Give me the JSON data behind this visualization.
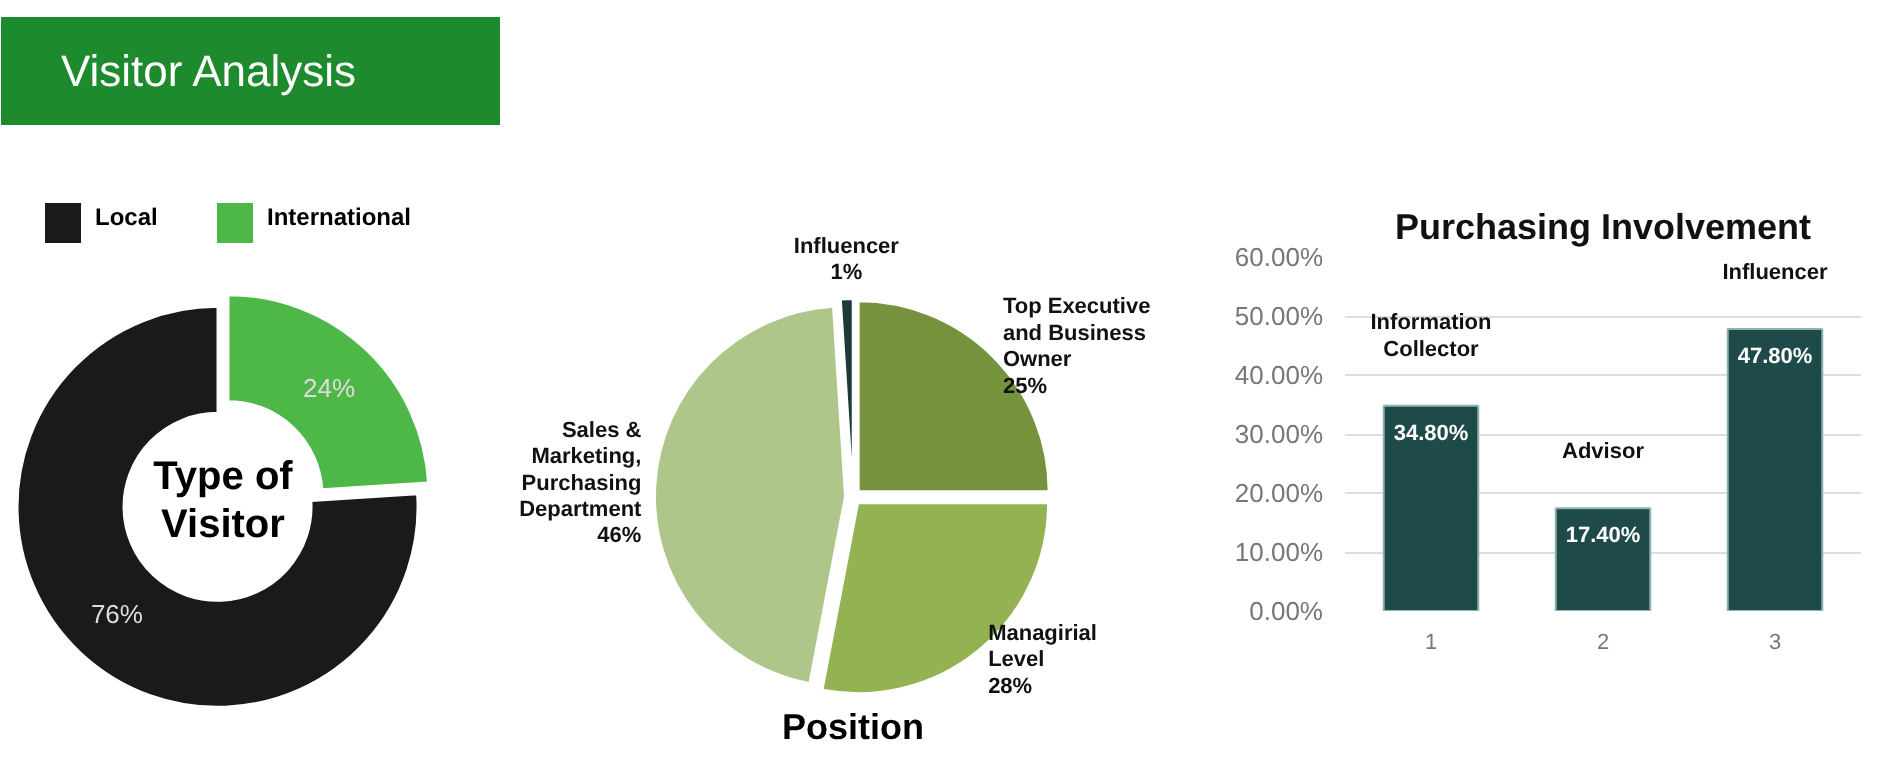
{
  "chart_data": [
    {
      "type": "donut",
      "title": "Type of Visitor",
      "annotations": [
        "Visitor Analysis"
      ],
      "categories": [
        "Local",
        "International"
      ],
      "values": [
        76,
        24
      ],
      "colors": [
        "#1a1a1a",
        "#4db848"
      ],
      "value_labels": [
        "76%",
        "24%"
      ],
      "legend": "top"
    },
    {
      "type": "pie",
      "title": "Position",
      "categories": [
        "Influencer",
        "Sales & Marketing, Purchasing Department",
        "Managirial Level",
        "Top Executive and Business Owner"
      ],
      "values": [
        1,
        46,
        28,
        25
      ],
      "colors": [
        "#1c3a36",
        "#afc68a",
        "#93b251",
        "#76923c"
      ],
      "value_labels": [
        "1%",
        "46%",
        "28%",
        "25%"
      ]
    },
    {
      "type": "bar",
      "title": "Purchasing Involvement",
      "categories": [
        "1",
        "2",
        "3"
      ],
      "values": [
        34.8,
        17.4,
        47.8
      ],
      "color": "#1e4a4a",
      "value_labels": [
        "34.80%",
        "17.40%",
        "47.80%"
      ],
      "ylim": [
        0,
        60
      ],
      "yticks": [
        {
          "value": 0,
          "label": "0.00%"
        },
        {
          "value": 10,
          "label": "10.00%"
        },
        {
          "value": 20,
          "label": "20.00%"
        },
        {
          "value": 30,
          "label": "30.00%"
        },
        {
          "value": 40,
          "label": "40.00%"
        },
        {
          "value": 50,
          "label": "50.00%"
        },
        {
          "value": 60,
          "label": "60.00%"
        }
      ],
      "grid": "y",
      "annotations": [
        "Information Collector",
        "Advisor",
        "Influencer"
      ]
    }
  ]
}
